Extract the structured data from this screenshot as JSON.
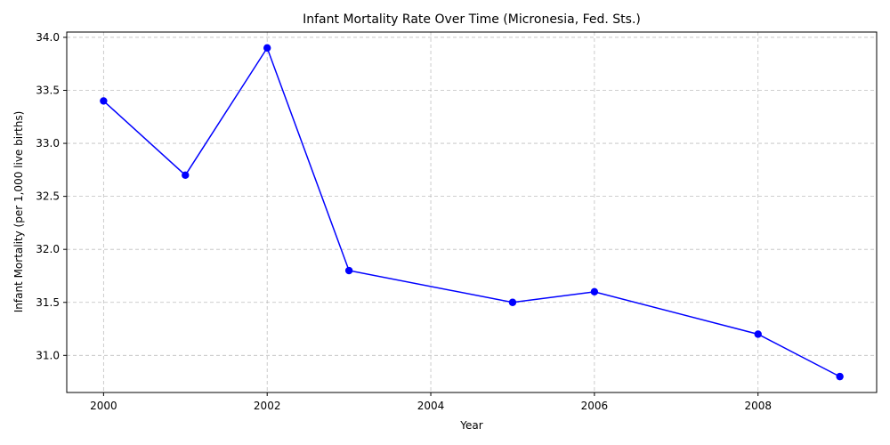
{
  "chart_data": {
    "type": "line",
    "title": "Infant Mortality Rate Over Time (Micronesia, Fed. Sts.)",
    "xlabel": "Year",
    "ylabel": "Infant Mortality (per 1,000 live births)",
    "xlim": [
      1999.55,
      2009.45
    ],
    "ylim": [
      30.65,
      34.05
    ],
    "xticks": [
      2000,
      2002,
      2004,
      2006,
      2008
    ],
    "yticks": [
      31.0,
      31.5,
      32.0,
      32.5,
      33.0,
      33.5,
      34.0
    ],
    "xtick_labels": [
      "2000",
      "2002",
      "2004",
      "2006",
      "2008"
    ],
    "ytick_labels": [
      "31.0",
      "31.5",
      "32.0",
      "32.5",
      "33.0",
      "33.5",
      "34.0"
    ],
    "grid": true,
    "series": [
      {
        "color": "#0000ff",
        "marker": "circle",
        "x": [
          2000,
          2001,
          2002,
          2003,
          2005,
          2006,
          2008,
          2009
        ],
        "y": [
          33.4,
          32.7,
          33.9,
          31.8,
          31.5,
          31.6,
          31.2,
          30.8
        ]
      }
    ]
  }
}
